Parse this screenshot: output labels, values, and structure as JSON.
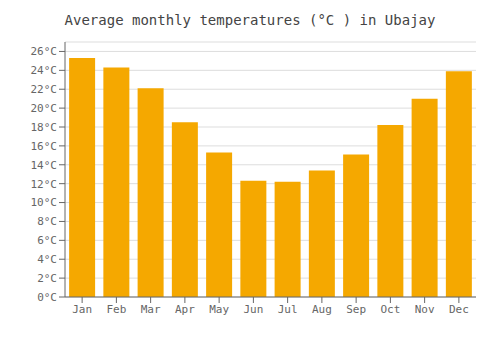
{
  "chart_data": {
    "type": "bar",
    "title": "Average monthly temperatures (°C ) in Ubajay",
    "categories": [
      "Jan",
      "Feb",
      "Mar",
      "Apr",
      "May",
      "Jun",
      "Jul",
      "Aug",
      "Sep",
      "Oct",
      "Nov",
      "Dec"
    ],
    "values": [
      25.3,
      24.3,
      22.1,
      18.5,
      15.3,
      12.3,
      12.2,
      13.4,
      15.1,
      18.2,
      21.0,
      23.9
    ],
    "color": "#F5A800",
    "ylim": [
      0,
      27
    ],
    "yticks": [
      {
        "value": 0,
        "label": "0°C"
      },
      {
        "value": 2,
        "label": "2°C"
      },
      {
        "value": 4,
        "label": "4°C"
      },
      {
        "value": 6,
        "label": "6°C"
      },
      {
        "value": 8,
        "label": "8°C"
      },
      {
        "value": 10,
        "label": "10°C"
      },
      {
        "value": 12,
        "label": "12°C"
      },
      {
        "value": 14,
        "label": "14°C"
      },
      {
        "value": 16,
        "label": "16°C"
      },
      {
        "value": 18,
        "label": "18°C"
      },
      {
        "value": 20,
        "label": "20°C"
      },
      {
        "value": 22,
        "label": "22°C"
      },
      {
        "value": 24,
        "label": "24°C"
      },
      {
        "value": 26,
        "label": "26°C"
      }
    ],
    "grid": true
  }
}
